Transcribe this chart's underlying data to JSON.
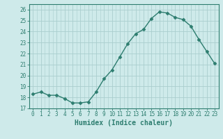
{
  "x": [
    0,
    1,
    2,
    3,
    4,
    5,
    6,
    7,
    8,
    9,
    10,
    11,
    12,
    13,
    14,
    15,
    16,
    17,
    18,
    19,
    20,
    21,
    22,
    23
  ],
  "y": [
    18.3,
    18.5,
    18.2,
    18.2,
    17.9,
    17.5,
    17.5,
    17.6,
    18.5,
    19.7,
    20.5,
    21.7,
    22.9,
    23.8,
    24.2,
    25.2,
    25.8,
    25.7,
    25.3,
    25.1,
    24.5,
    23.3,
    22.2,
    21.1
  ],
  "xlabel": "Humidex (Indice chaleur)",
  "line_color": "#2d7d6f",
  "bg_color": "#ceeaea",
  "grid_color": "#aacece",
  "ylim": [
    17,
    26.5
  ],
  "yticks": [
    17,
    18,
    19,
    20,
    21,
    22,
    23,
    24,
    25,
    26
  ],
  "xticks": [
    0,
    1,
    2,
    3,
    4,
    5,
    6,
    7,
    8,
    9,
    10,
    11,
    12,
    13,
    14,
    15,
    16,
    17,
    18,
    19,
    20,
    21,
    22,
    23
  ],
  "tick_fontsize": 5.5,
  "xlabel_fontsize": 7.0
}
